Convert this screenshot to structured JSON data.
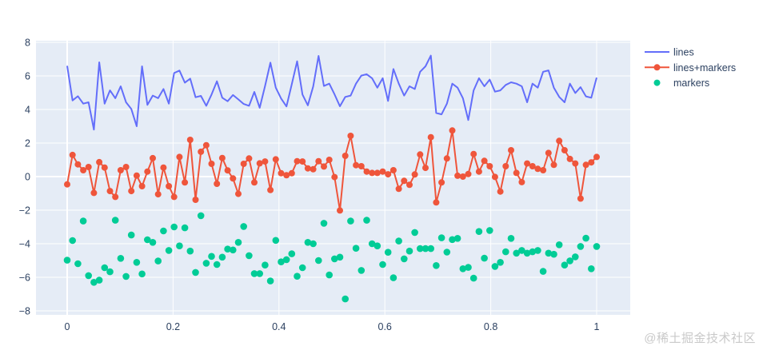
{
  "watermark": {
    "text": "@稀土掘金技术社区"
  },
  "colors": {
    "paper_bg": "#ffffff",
    "plot_bg": "#e5ecf6",
    "grid": "#ffffff",
    "tick_font": "#2a3f5f",
    "legend_font": "#2a3f5f",
    "series_lines": "#636efa",
    "series_lines_markers": "#ef553b",
    "series_markers": "#00cc96",
    "watermark": "#c9c9c9"
  },
  "chart_data": {
    "type": "line",
    "title": "",
    "xlabel": "",
    "ylabel": "",
    "grid": true,
    "legend_position": "right-top",
    "x_axis": {
      "ticks": [
        0,
        0.2,
        0.4,
        0.6,
        0.8,
        1
      ],
      "labels": [
        "0",
        "0.2",
        "0.4",
        "0.6",
        "0.8",
        "1"
      ],
      "range": [
        -0.059,
        1.065
      ]
    },
    "y_axis": {
      "ticks": [
        -8,
        -6,
        -4,
        -2,
        0,
        2,
        4,
        6,
        8
      ],
      "labels": [
        "−8",
        "−6",
        "−4",
        "−2",
        "0",
        "2",
        "4",
        "6",
        "8"
      ],
      "range": [
        -8.24,
        8.1
      ]
    },
    "x": {
      "type": "linspace",
      "start": 0,
      "stop": 1,
      "num": 100
    },
    "series": [
      {
        "name": "lines",
        "mode": "lines",
        "color": "#636efa",
        "y": [
          6.6,
          4.54,
          4.79,
          4.35,
          4.43,
          2.8,
          6.81,
          4.35,
          5.14,
          4.67,
          5.38,
          4.43,
          4.03,
          3.0,
          6.57,
          4.27,
          4.83,
          4.67,
          5.22,
          4.35,
          6.17,
          6.32,
          5.6,
          5.84,
          4.73,
          4.81,
          4.22,
          4.89,
          5.68,
          4.7,
          4.49,
          4.86,
          4.6,
          4.33,
          4.22,
          5.05,
          4.1,
          5.4,
          6.79,
          5.3,
          4.65,
          4.18,
          5.5,
          6.87,
          4.89,
          4.25,
          5.37,
          7.19,
          5.4,
          5.54,
          4.9,
          4.19,
          4.75,
          4.83,
          5.54,
          6.02,
          6.1,
          5.86,
          5.3,
          5.86,
          4.51,
          6.41,
          5.54,
          4.83,
          5.38,
          5.22,
          6.25,
          6.57,
          7.21,
          3.79,
          3.71,
          4.35,
          5.54,
          5.3,
          4.67,
          3.37,
          5.14,
          5.86,
          5.38,
          5.78,
          5.06,
          5.14,
          5.46,
          5.62,
          5.54,
          5.38,
          4.43,
          5.54,
          5.3,
          6.25,
          6.33,
          5.3,
          4.75,
          4.43,
          5.54,
          4.98,
          5.33,
          4.78,
          4.7,
          5.9
        ]
      },
      {
        "name": "lines+markers",
        "mode": "lines+markers",
        "color": "#ef553b",
        "y": [
          -0.46,
          1.29,
          0.73,
          0.38,
          0.57,
          -0.97,
          0.86,
          0.54,
          -0.86,
          -1.21,
          0.38,
          0.57,
          -0.86,
          0.06,
          -0.57,
          0.3,
          1.1,
          -1.05,
          0.54,
          -0.57,
          -1.21,
          1.17,
          -0.35,
          2.19,
          -1.38,
          1.48,
          1.87,
          0.76,
          -0.43,
          1.11,
          0.37,
          -0.11,
          -1.03,
          0.76,
          1.08,
          -0.35,
          0.79,
          0.9,
          -0.8,
          1.03,
          0.2,
          0.08,
          0.2,
          0.92,
          0.9,
          0.49,
          0.44,
          0.92,
          0.6,
          1.0,
          -0.03,
          -2.02,
          1.24,
          2.43,
          0.68,
          0.62,
          0.3,
          0.22,
          0.22,
          0.3,
          0.14,
          0.38,
          -0.73,
          -0.25,
          -0.49,
          0.13,
          1.32,
          0.52,
          2.35,
          -1.54,
          -0.35,
          1.08,
          2.75,
          0.05,
          0.0,
          0.15,
          1.35,
          0.3,
          0.94,
          0.62,
          -0.02,
          -0.89,
          0.62,
          1.57,
          0.22,
          -0.33,
          0.78,
          0.62,
          0.46,
          0.38,
          1.41,
          0.7,
          2.13,
          1.57,
          1.05,
          0.78,
          -1.31,
          0.7,
          0.85,
          1.17
        ]
      },
      {
        "name": "markers",
        "mode": "markers",
        "color": "#00cc96",
        "y": [
          -4.98,
          -3.81,
          -5.19,
          -2.65,
          -5.9,
          -6.3,
          -6.17,
          -5.43,
          -5.67,
          -2.6,
          -4.87,
          -5.95,
          -3.48,
          -5.11,
          -5.8,
          -3.76,
          -3.92,
          -5.03,
          -3.24,
          -4.4,
          -3.0,
          -4.13,
          -3.05,
          -4.44,
          -5.71,
          -2.33,
          -5.16,
          -4.75,
          -5.24,
          -4.8,
          -4.32,
          -4.37,
          -3.92,
          -2.97,
          -4.71,
          -5.78,
          -5.78,
          -5.27,
          -6.22,
          -3.8,
          -5.08,
          -4.95,
          -4.6,
          -5.94,
          -5.43,
          -3.92,
          -4.0,
          -5.0,
          -2.78,
          -5.86,
          -4.9,
          -4.8,
          -7.29,
          -2.65,
          -4.27,
          -5.59,
          -2.6,
          -4.0,
          -4.13,
          -5.24,
          -4.51,
          -6.03,
          -3.84,
          -4.9,
          -4.44,
          -3.33,
          -4.29,
          -4.29,
          -4.29,
          -5.3,
          -3.65,
          -4.5,
          -3.75,
          -3.68,
          -5.49,
          -5.41,
          -6.05,
          -3.27,
          -4.86,
          -3.21,
          -5.35,
          -5.11,
          -4.48,
          -3.68,
          -4.56,
          -4.4,
          -4.56,
          -4.48,
          -4.4,
          -5.65,
          -4.56,
          -4.63,
          -4.06,
          -5.27,
          -5.02,
          -4.78,
          -4.16,
          -3.67,
          -5.49,
          -4.16
        ]
      }
    ]
  }
}
